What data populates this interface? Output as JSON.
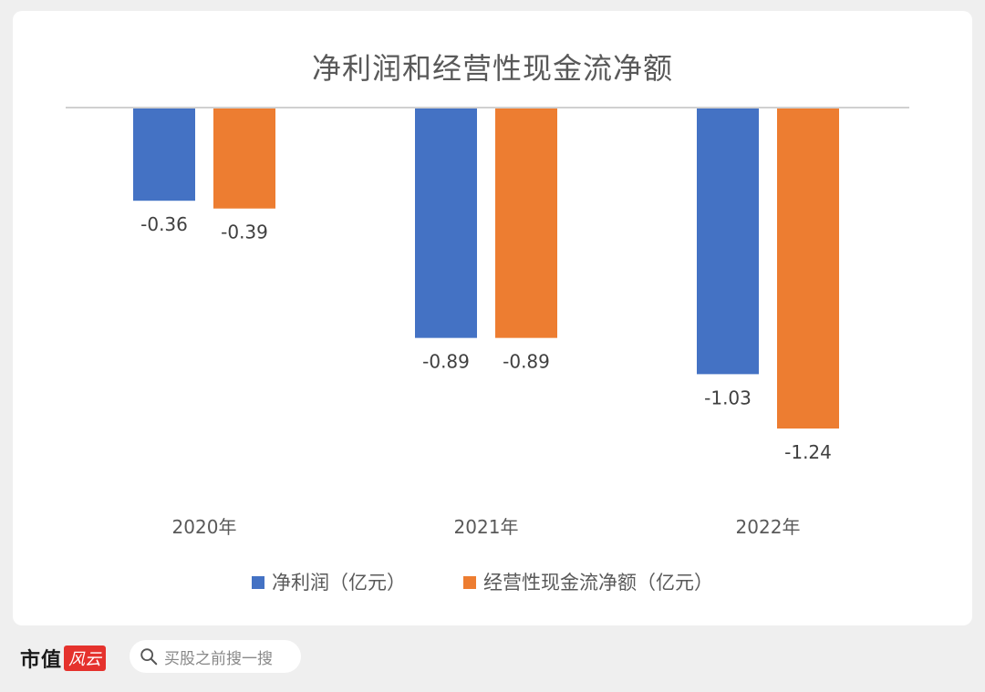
{
  "chart_data": {
    "type": "bar",
    "title": "净利润和经营性现金流净额",
    "categories": [
      "2020年",
      "2021年",
      "2022年"
    ],
    "series": [
      {
        "name": "净利润（亿元）",
        "values": [
          -0.36,
          -0.89,
          -1.03
        ],
        "color": "#4472C4"
      },
      {
        "name": "经营性现金流净额（亿元）",
        "values": [
          -0.39,
          -0.89,
          -1.24
        ],
        "color": "#ED7D31"
      }
    ],
    "data_labels": true,
    "ylim": [
      -1.24,
      0
    ],
    "grid": false,
    "legend_position": "bottom"
  },
  "footer": {
    "brand": "市值",
    "brand_script": "风云",
    "search_placeholder": "买股之前搜一搜"
  }
}
